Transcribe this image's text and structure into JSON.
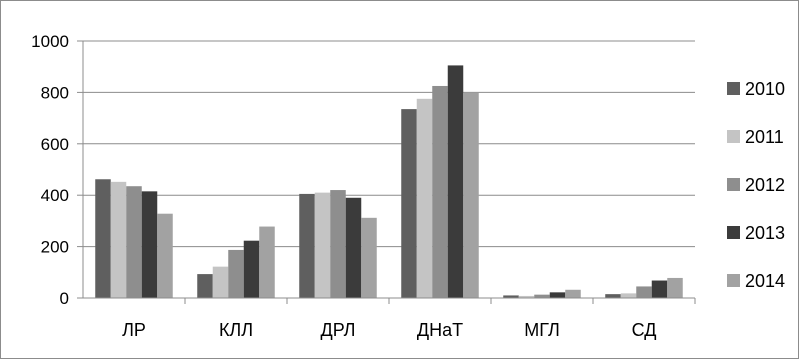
{
  "chart_data": {
    "type": "bar",
    "categories": [
      "ЛР",
      "КЛЛ",
      "ДРЛ",
      "ДНаТ",
      "МГЛ",
      "СД"
    ],
    "series": [
      {
        "name": "2010",
        "color": "#5f5f5f",
        "values": [
          462,
          93,
          405,
          735,
          10,
          15
        ]
      },
      {
        "name": "2011",
        "color": "#c4c4c4",
        "values": [
          452,
          122,
          410,
          775,
          8,
          18
        ]
      },
      {
        "name": "2012",
        "color": "#8e8e8e",
        "values": [
          435,
          187,
          420,
          825,
          13,
          45
        ]
      },
      {
        "name": "2013",
        "color": "#3b3b3b",
        "values": [
          415,
          223,
          390,
          905,
          22,
          68
        ]
      },
      {
        "name": "2014",
        "color": "#a2a2a2",
        "values": [
          328,
          278,
          312,
          800,
          32,
          78
        ]
      }
    ],
    "yticks": [
      0,
      200,
      400,
      600,
      800,
      1000
    ],
    "ylim": [
      0,
      1000
    ],
    "grid": true,
    "legend_position": "right"
  }
}
